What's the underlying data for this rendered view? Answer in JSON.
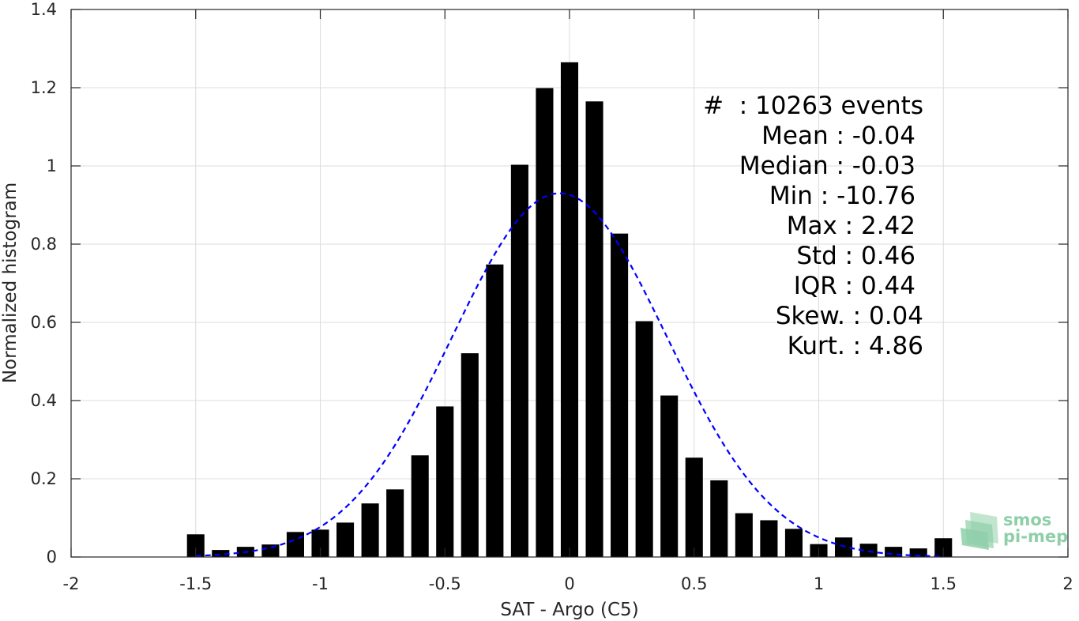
{
  "chart_data": {
    "type": "bar",
    "xlabel": "SAT - Argo (C5)",
    "ylabel": "Normalized histogram",
    "xlim": [
      -2,
      2
    ],
    "ylim": [
      0,
      1.4
    ],
    "grid": true,
    "xticks": [
      -2,
      -1.5,
      -1,
      -0.5,
      0,
      0.5,
      1,
      1.5,
      2
    ],
    "xtick_labels": [
      "-2",
      "-1.5",
      "-1",
      "-0.5",
      "0",
      "0.5",
      "1",
      "1.5",
      "2"
    ],
    "yticks": [
      0,
      0.2,
      0.4,
      0.6,
      0.8,
      1,
      1.2,
      1.4
    ],
    "ytick_labels": [
      "0",
      "0.2",
      "0.4",
      "0.6",
      "0.8",
      "1",
      "1.2",
      "1.4"
    ],
    "bar_width": 0.07,
    "bars": {
      "x": [
        -1.5,
        -1.4,
        -1.3,
        -1.2,
        -1.1,
        -1.0,
        -0.9,
        -0.8,
        -0.7,
        -0.6,
        -0.5,
        -0.4,
        -0.3,
        -0.2,
        -0.1,
        0.0,
        0.1,
        0.2,
        0.3,
        0.4,
        0.5,
        0.6,
        0.7,
        0.8,
        0.9,
        1.0,
        1.1,
        1.2,
        1.3,
        1.4,
        1.5
      ],
      "values": [
        0.058,
        0.018,
        0.026,
        0.032,
        0.064,
        0.07,
        0.088,
        0.137,
        0.173,
        0.26,
        0.385,
        0.521,
        0.748,
        1.003,
        1.199,
        1.265,
        1.165,
        0.827,
        0.603,
        0.413,
        0.254,
        0.196,
        0.112,
        0.094,
        0.072,
        0.033,
        0.05,
        0.034,
        0.026,
        0.022,
        0.048
      ],
      "color": "#000000"
    },
    "fit": {
      "style": "dashed",
      "color": "#0000ff",
      "mean": -0.04,
      "std": 0.43,
      "x_range": [
        -1.5,
        1.5
      ]
    },
    "annotation": [
      "#  : 10263 events",
      "Mean : -0.04",
      "Median : -0.03",
      "Min : -10.76",
      "Max : 2.42",
      "Std : 0.46",
      "IQR : 0.44",
      "Skew. : 0.04",
      "Kurt. : 4.86"
    ]
  },
  "logo": {
    "line1": "smos",
    "line2": "pi-mep",
    "color": "#8ecfa8"
  }
}
